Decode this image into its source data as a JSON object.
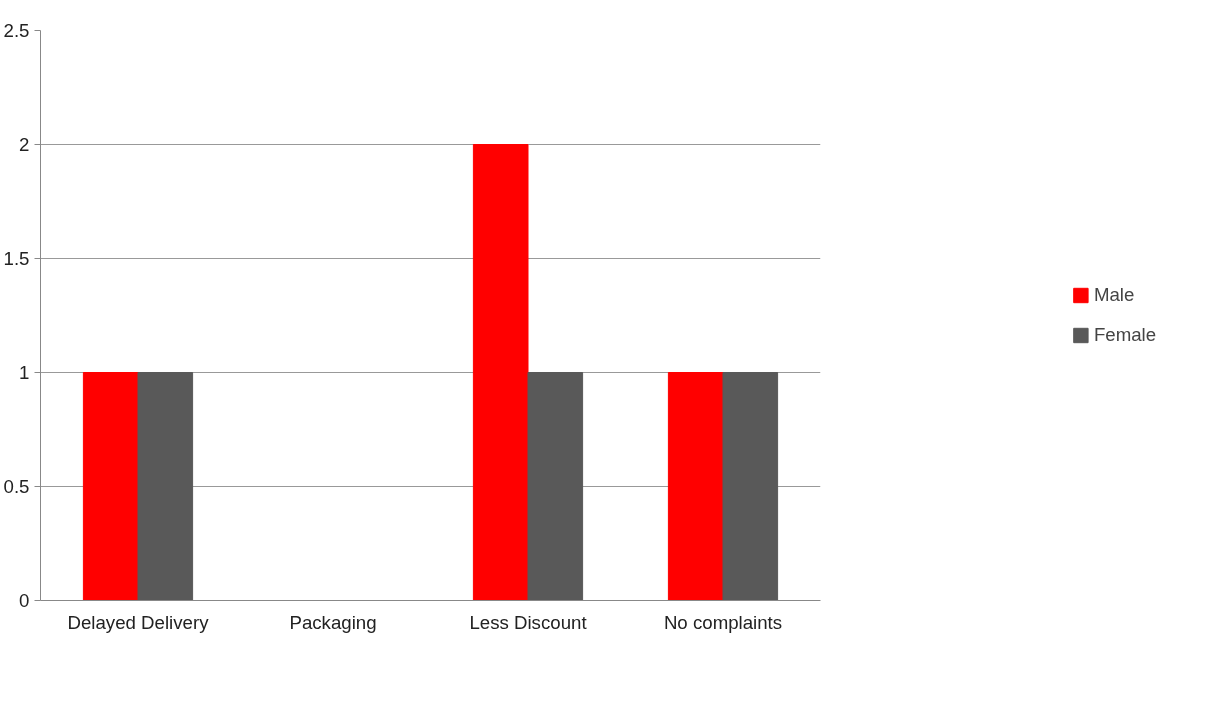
{
  "chart_data": {
    "type": "bar",
    "categories": [
      "Delayed Delivery",
      "Packaging",
      "Less Discount",
      "No complaints"
    ],
    "series": [
      {
        "name": "Male",
        "color": "#ff0000",
        "values": [
          1,
          0,
          2,
          1
        ]
      },
      {
        "name": "Female",
        "color": "#595959",
        "values": [
          1,
          0,
          1,
          1
        ]
      }
    ],
    "ylim": [
      0,
      2.5
    ],
    "yticks": [
      0,
      0.5,
      1,
      1.5,
      2,
      2.5
    ],
    "grid": "y",
    "legend": "right"
  }
}
